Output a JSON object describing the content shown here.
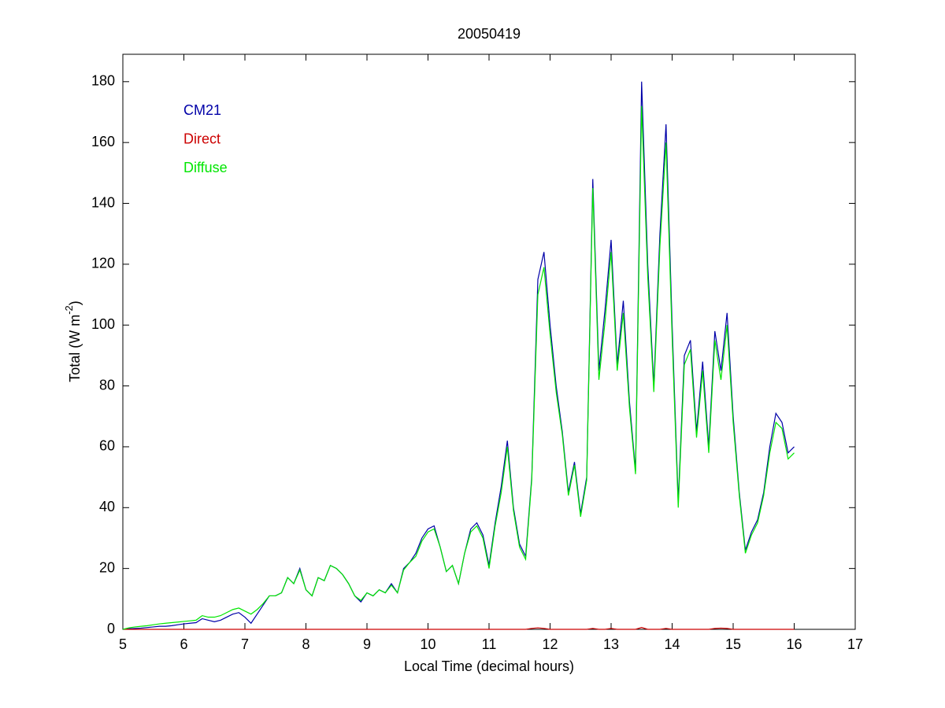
{
  "chart_data": {
    "type": "line",
    "title": "20050419",
    "x_label": "Local Time (decimal hours)",
    "y_label": {
      "text": "Total (W m",
      "superscript": "-2",
      "end": ")"
    },
    "xlim": [
      5,
      17
    ],
    "xticks": [
      5,
      6,
      7,
      8,
      9,
      10,
      11,
      12,
      13,
      14,
      15,
      16,
      17
    ],
    "ylim": [
      0,
      189
    ],
    "yticks": [
      0,
      20,
      40,
      60,
      80,
      100,
      120,
      140,
      160,
      180
    ],
    "grid": false,
    "legend": "upper left",
    "x": [
      5.0,
      5.1,
      5.2,
      5.3,
      5.4,
      5.5,
      5.6,
      5.7,
      5.8,
      5.9,
      6.0,
      6.1,
      6.2,
      6.3,
      6.4,
      6.5,
      6.6,
      6.7,
      6.8,
      6.9,
      7.0,
      7.1,
      7.2,
      7.3,
      7.4,
      7.5,
      7.6,
      7.7,
      7.8,
      7.9,
      8.0,
      8.1,
      8.2,
      8.3,
      8.4,
      8.5,
      8.6,
      8.7,
      8.8,
      8.9,
      9.0,
      9.1,
      9.2,
      9.3,
      9.4,
      9.5,
      9.6,
      9.7,
      9.8,
      9.9,
      10.0,
      10.1,
      10.2,
      10.3,
      10.4,
      10.5,
      10.6,
      10.7,
      10.8,
      10.9,
      11.0,
      11.1,
      11.2,
      11.3,
      11.4,
      11.5,
      11.6,
      11.7,
      11.8,
      11.9,
      12.0,
      12.1,
      12.2,
      12.3,
      12.4,
      12.5,
      12.6,
      12.7,
      12.8,
      12.9,
      13.0,
      13.1,
      13.2,
      13.3,
      13.4,
      13.5,
      13.6,
      13.7,
      13.8,
      13.9,
      14.0,
      14.1,
      14.2,
      14.3,
      14.4,
      14.5,
      14.6,
      14.7,
      14.8,
      14.9,
      15.0,
      15.1,
      15.2,
      15.3,
      15.4,
      15.5,
      15.6,
      15.7,
      15.8,
      15.9,
      16.0
    ],
    "series": [
      {
        "name": "CM21",
        "color": "#0000a8",
        "values": [
          0,
          0.2,
          0.3,
          0.4,
          0.6,
          0.8,
          1.0,
          1.0,
          1.2,
          1.5,
          1.8,
          2,
          2.2,
          3.5,
          3,
          2.5,
          3,
          4,
          5,
          5.5,
          4,
          2,
          5,
          8,
          11,
          11,
          12,
          17,
          15,
          20,
          13,
          11,
          17,
          16,
          21,
          20,
          18,
          15,
          11,
          9,
          12,
          11,
          13,
          12,
          15,
          12,
          20,
          22,
          25,
          30,
          33,
          34,
          27,
          19,
          21,
          15,
          25,
          33,
          35,
          31,
          21,
          35,
          47,
          62,
          40,
          28,
          24,
          50,
          115,
          124,
          100,
          80,
          65,
          45,
          55,
          38,
          50,
          148,
          85,
          105,
          128,
          87,
          108,
          75,
          52,
          180,
          120,
          80,
          130,
          166,
          100,
          42,
          90,
          95,
          65,
          88,
          60,
          98,
          85,
          104,
          70,
          45,
          26,
          32,
          36,
          45,
          60,
          71,
          68,
          58,
          60
        ]
      },
      {
        "name": "Direct",
        "color": "#cc0000",
        "values": [
          0,
          0,
          0,
          0,
          0,
          0,
          0,
          0,
          0,
          0,
          0,
          0,
          0,
          0,
          0,
          0,
          0,
          0,
          0,
          0,
          0,
          0,
          0,
          0,
          0,
          0,
          0,
          0,
          0,
          0,
          0,
          0,
          0,
          0,
          0,
          0,
          0,
          0,
          0,
          0,
          0,
          0,
          0,
          0,
          0,
          0,
          0,
          0,
          0,
          0,
          0,
          0,
          0,
          0,
          0,
          0,
          0,
          0,
          0,
          0,
          0,
          0,
          0,
          0,
          0,
          0,
          0,
          0.3,
          0.5,
          0.3,
          0,
          0,
          0,
          0,
          0,
          0,
          0,
          0.3,
          0,
          0,
          0.3,
          0,
          0,
          0,
          0,
          0.6,
          0,
          0,
          0,
          0.3,
          0,
          0,
          0,
          0,
          0,
          0,
          0,
          0.3,
          0.4,
          0.3,
          0,
          0,
          0,
          0,
          0,
          0,
          0,
          0,
          0,
          0,
          0
        ]
      },
      {
        "name": "Diffuse",
        "color": "#00e600",
        "values": [
          0,
          0.5,
          0.8,
          1,
          1.2,
          1.5,
          1.8,
          2,
          2.2,
          2.4,
          2.6,
          2.8,
          3,
          4.5,
          4,
          4,
          4.5,
          5.5,
          6.5,
          7,
          6,
          5,
          6.5,
          8.5,
          11,
          11,
          12,
          17,
          15,
          19.5,
          13,
          11,
          17,
          16,
          21,
          20,
          18,
          15,
          11,
          9.5,
          12,
          11,
          13,
          12,
          14.5,
          12,
          19.5,
          22,
          24,
          29,
          32,
          33,
          27,
          19,
          21,
          15,
          25,
          32,
          34,
          30,
          20,
          34,
          45,
          60,
          39,
          27,
          23,
          49,
          110,
          119,
          97,
          78,
          64,
          44,
          54,
          37,
          49,
          145,
          82,
          101,
          124,
          85,
          104,
          73,
          51,
          172,
          116,
          78,
          126,
          160,
          96,
          40,
          87,
          92,
          63,
          85,
          58,
          95,
          82,
          100,
          68,
          44,
          25,
          31,
          35,
          44,
          58,
          68,
          66,
          56,
          58
        ]
      }
    ]
  }
}
